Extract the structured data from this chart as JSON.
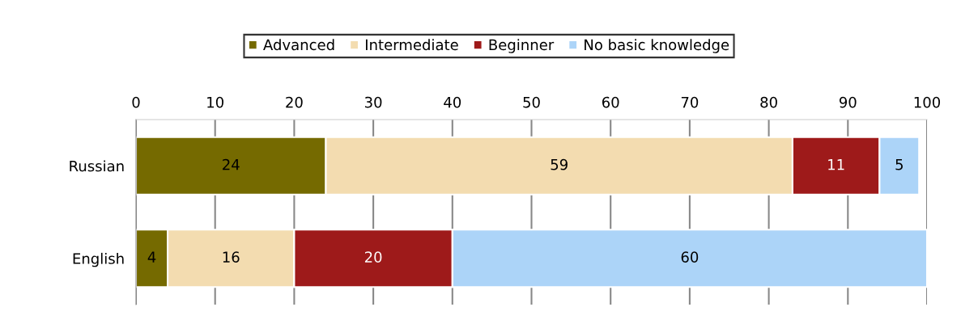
{
  "chart_data": {
    "type": "bar",
    "orientation": "horizontal",
    "stacked": true,
    "categories": [
      "Russian",
      "English"
    ],
    "series": [
      {
        "name": "Advanced",
        "color": "#756a00",
        "values": [
          24,
          4
        ]
      },
      {
        "name": "Intermediate",
        "color": "#f3dcb0",
        "values": [
          59,
          16
        ]
      },
      {
        "name": "Beginner",
        "color": "#9e1a1a",
        "values": [
          11,
          20
        ]
      },
      {
        "name": "No basic knowledge",
        "color": "#acd4f8",
        "values": [
          5,
          60
        ]
      }
    ],
    "xlim": [
      0,
      100
    ],
    "xticks": [
      0,
      10,
      20,
      30,
      40,
      50,
      60,
      70,
      80,
      90,
      100
    ],
    "grid": "x",
    "legend": "top",
    "data_labels": true
  }
}
